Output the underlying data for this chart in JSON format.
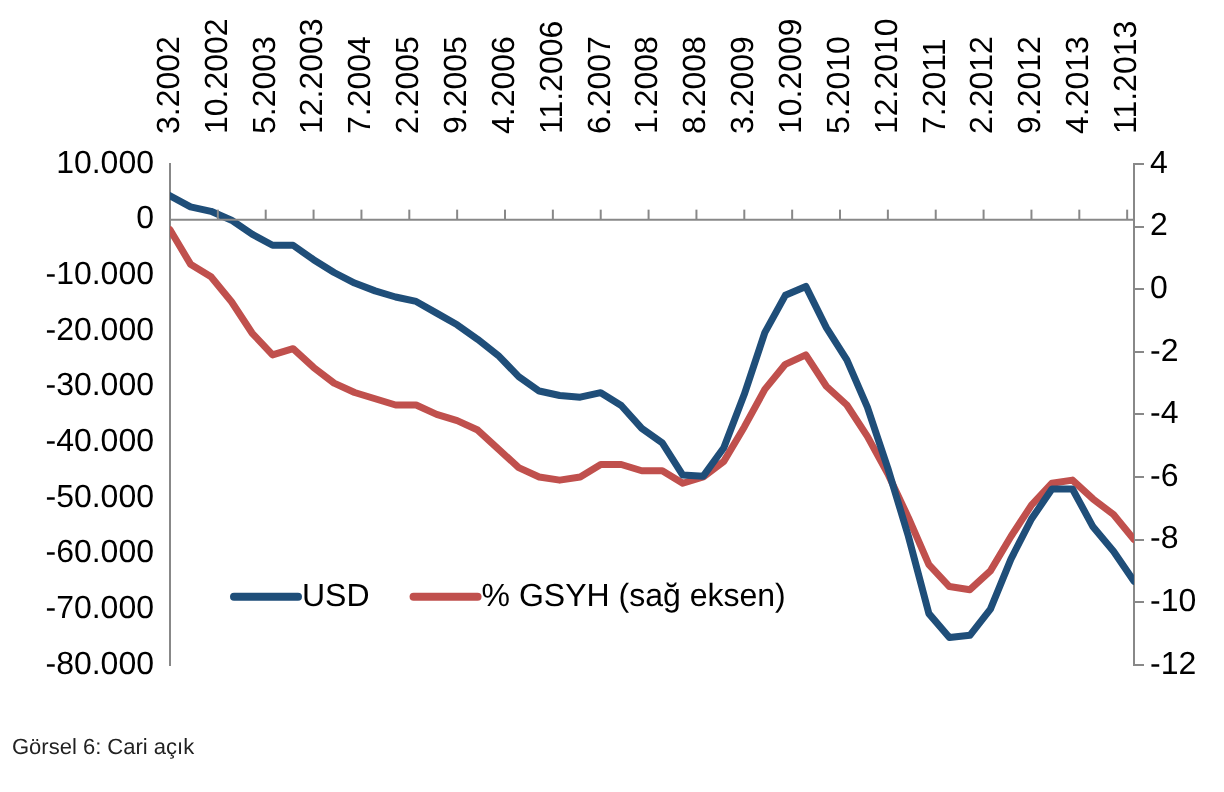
{
  "chart_data": {
    "type": "line",
    "x": [
      "2002-03",
      "2002-06",
      "2002-09",
      "2002-12",
      "2003-03",
      "2003-06",
      "2003-09",
      "2003-12",
      "2004-03",
      "2004-06",
      "2004-09",
      "2004-12",
      "2005-03",
      "2005-06",
      "2005-09",
      "2005-12",
      "2006-03",
      "2006-06",
      "2006-09",
      "2006-12",
      "2007-03",
      "2007-06",
      "2007-09",
      "2007-12",
      "2008-03",
      "2008-06",
      "2008-09",
      "2008-12",
      "2009-03",
      "2009-06",
      "2009-09",
      "2009-12",
      "2010-03",
      "2010-06",
      "2010-09",
      "2010-12",
      "2011-03",
      "2011-06",
      "2011-09",
      "2011-12",
      "2012-03",
      "2012-06",
      "2012-09",
      "2012-12",
      "2013-03",
      "2013-06",
      "2013-09",
      "2013-12"
    ],
    "series": [
      {
        "name": "USD",
        "color": "#1f4e79",
        "values": [
          4300,
          2300,
          1500,
          -100,
          -2600,
          -4600,
          -4600,
          -7200,
          -9500,
          -11400,
          -12800,
          -13900,
          -14700,
          -16800,
          -18900,
          -21500,
          -24400,
          -28200,
          -30800,
          -31600,
          -31900,
          -31100,
          -33400,
          -37500,
          -40100,
          -45900,
          -46100,
          -41000,
          -31400,
          -20300,
          -13600,
          -12000,
          -19400,
          -25200,
          -33700,
          -44700,
          -56900,
          -70800,
          -75100,
          -74700,
          -70000,
          -61000,
          -53800,
          -48400,
          -48400,
          -55200,
          -59600,
          -65000
        ]
      },
      {
        "name": "% GSYH (sağ eksen)",
        "color": "#c0504d",
        "axis": "y2",
        "values": [
          1.9,
          0.8,
          0.4,
          -0.4,
          -1.4,
          -2.1,
          -1.9,
          -2.5,
          -3.0,
          -3.3,
          -3.5,
          -3.7,
          -3.7,
          -4.0,
          -4.2,
          -4.5,
          -5.1,
          -5.7,
          -6.0,
          -6.1,
          -6.0,
          -5.6,
          -5.6,
          -5.8,
          -5.8,
          -6.2,
          -6.0,
          -5.5,
          -4.4,
          -3.2,
          -2.4,
          -2.1,
          -3.1,
          -3.7,
          -4.7,
          -5.9,
          -7.3,
          -8.8,
          -9.5,
          -9.6,
          -9.0,
          -7.9,
          -6.9,
          -6.2,
          -6.1,
          -6.7,
          -7.2,
          -8.0
        ]
      }
    ],
    "xlim": [
      "2002-03",
      "2013-12"
    ],
    "xticks": [
      {
        "value": "2002-03",
        "label": "3.2002"
      },
      {
        "value": "2002-10",
        "label": "10.2002"
      },
      {
        "value": "2003-05",
        "label": "5.2003"
      },
      {
        "value": "2003-12",
        "label": "12.2003"
      },
      {
        "value": "2004-07",
        "label": "7.2004"
      },
      {
        "value": "2005-02",
        "label": "2.2005"
      },
      {
        "value": "2005-09",
        "label": "9.2005"
      },
      {
        "value": "2006-04",
        "label": "4.2006"
      },
      {
        "value": "2006-11",
        "label": "11.2006"
      },
      {
        "value": "2007-06",
        "label": "6.2007"
      },
      {
        "value": "2008-01",
        "label": "1.2008"
      },
      {
        "value": "2008-08",
        "label": "8.2008"
      },
      {
        "value": "2009-03",
        "label": "3.2009"
      },
      {
        "value": "2009-10",
        "label": "10.2009"
      },
      {
        "value": "2010-05",
        "label": "5.2010"
      },
      {
        "value": "2010-12",
        "label": "12.2010"
      },
      {
        "value": "2011-07",
        "label": "7.2011"
      },
      {
        "value": "2012-02",
        "label": "2.2012"
      },
      {
        "value": "2012-09",
        "label": "9.2012"
      },
      {
        "value": "2013-04",
        "label": "4.2013"
      },
      {
        "value": "2013-11",
        "label": "11.2013"
      }
    ],
    "ylim": [
      -80000,
      10000
    ],
    "yticks": [
      {
        "value": 10000,
        "label": "10.000"
      },
      {
        "value": 0,
        "label": "0"
      },
      {
        "value": -10000,
        "label": "-10.000"
      },
      {
        "value": -20000,
        "label": "-20.000"
      },
      {
        "value": -30000,
        "label": "-30.000"
      },
      {
        "value": -40000,
        "label": "-40.000"
      },
      {
        "value": -50000,
        "label": "-50.000"
      },
      {
        "value": -60000,
        "label": "-60.000"
      },
      {
        "value": -70000,
        "label": "-70.000"
      },
      {
        "value": -80000,
        "label": "-80.000"
      }
    ],
    "y2lim": [
      -12,
      4
    ],
    "y2ticks": [
      4,
      2,
      0,
      -2,
      -4,
      -6,
      -8,
      -10,
      -12
    ],
    "legend": "bottom left",
    "annotations": [
      "Görsel 6: Cari açık"
    ]
  }
}
